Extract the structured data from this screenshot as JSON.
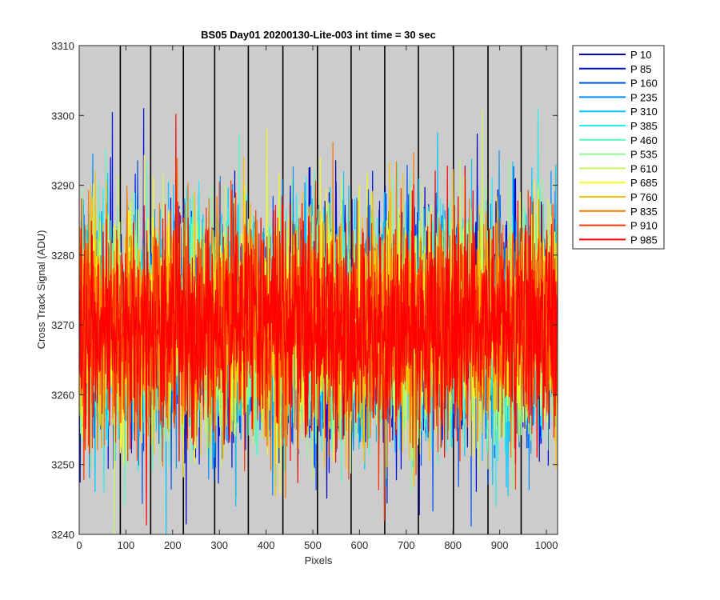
{
  "chart_data": {
    "type": "line",
    "title": "BS05 Day01 20200130-Lite-003 int time = 30 sec",
    "xlabel": "Pixels",
    "ylabel": "Cross Track Signal (ADU)",
    "xlim": [
      0,
      1024
    ],
    "ylim": [
      3240,
      3310
    ],
    "x_ticks": [
      0,
      100,
      200,
      300,
      400,
      500,
      600,
      700,
      800,
      900,
      1000
    ],
    "y_ticks": [
      3240,
      3250,
      3260,
      3270,
      3280,
      3290,
      3300,
      3310
    ],
    "grid": false,
    "plot_background": "#cccccc",
    "vertical_markers_x": [
      88,
      153,
      223,
      290,
      362,
      436,
      510,
      582,
      654,
      726,
      801,
      875,
      946
    ],
    "vertical_marker_color": "#000000",
    "legend_position": "outside-right-top",
    "noise_model": {
      "mean": 3270,
      "std_dev": 8,
      "min_observed": 3240,
      "max_observed": 3301,
      "samples_per_series": 1024
    },
    "series": [
      {
        "name": "P 10",
        "color": "#0000b8",
        "seed": 11
      },
      {
        "name": "P 85",
        "color": "#0010e8",
        "seed": 23
      },
      {
        "name": "P 160",
        "color": "#0050f0",
        "seed": 37
      },
      {
        "name": "P 235",
        "color": "#0090f8",
        "seed": 41
      },
      {
        "name": "P 310",
        "color": "#00c8ff",
        "seed": 53
      },
      {
        "name": "P 385",
        "color": "#20f0f0",
        "seed": 67
      },
      {
        "name": "P 460",
        "color": "#58f8c0",
        "seed": 71
      },
      {
        "name": "P 535",
        "color": "#90f890",
        "seed": 83
      },
      {
        "name": "P 610",
        "color": "#c8f860",
        "seed": 97
      },
      {
        "name": "P 685",
        "color": "#f8f820",
        "seed": 101
      },
      {
        "name": "P 760",
        "color": "#f8c000",
        "seed": 113
      },
      {
        "name": "P 835",
        "color": "#f87800",
        "seed": 127
      },
      {
        "name": "P 910",
        "color": "#f83800",
        "seed": 131
      },
      {
        "name": "P 985",
        "color": "#ff0000",
        "seed": 149
      }
    ]
  }
}
